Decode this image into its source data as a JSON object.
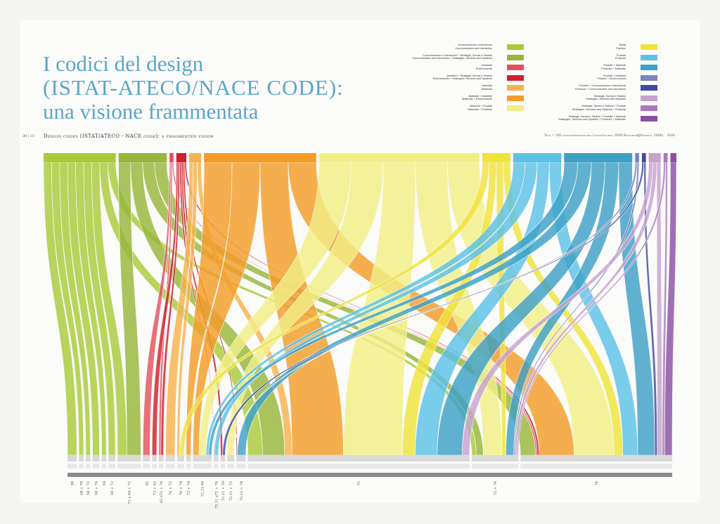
{
  "header": {
    "title_line1": "I codici del design",
    "title_line2": "(ISTAT-ATECO/NACE CODE):",
    "title_line3": "una visione frammentata",
    "subtitle": "Design codes (ISTAT/ATECO - NACE code): a fragmented vision",
    "page_numbers": "30 | 31",
    "source_note": "Dati = 392 ricerche/researches (fonte/source: DSN Research@Gnomon_2008)",
    "brand": "DSN"
  },
  "legend_left": [
    {
      "it": "Comunicazione e Interazione",
      "en": "Communication and Interaction",
      "color": "#a8cb3a"
    },
    {
      "it": "Comunicazione e Interazione + Strategie, Servizi e Sistemi",
      "en": "Communication and Interaction + Strategies, Services and Systems",
      "color": "#97b63b"
    },
    {
      "it": "Ambienti",
      "en": "Environments",
      "color": "#e4505c"
    },
    {
      "it": "Ambienti + Strategie, Servizi e Sistemi",
      "en": "Environments + Strategies, Services and Systems",
      "color": "#d11f2b"
    },
    {
      "it": "Materiali",
      "en": "Materials",
      "color": "#f6b24e"
    },
    {
      "it": "Materiali + Ambienti",
      "en": "Materials + Environments",
      "color": "#f39c28"
    },
    {
      "it": "Materiali + Prodotti",
      "en": "Materials + Products",
      "color": "#f1ee86"
    }
  ],
  "legend_right": [
    {
      "it": "Moda",
      "en": "Fashion",
      "color": "#efe33a"
    },
    {
      "it": "Prodotti",
      "en": "Products",
      "color": "#5bc1e7"
    },
    {
      "it": "Prodotti + Materiali",
      "en": "Products + Materials",
      "color": "#3da0c7"
    },
    {
      "it": "Prodotti + Ambienti",
      "en": "Product + Environments",
      "color": "#7a84c0"
    },
    {
      "it": "Prodotti + Comunicazione e Interazione",
      "en": "Products + Communication and Interaction",
      "color": "#3f4a9c"
    },
    {
      "it": "Strategie, Servizi e Sistemi",
      "en": "Strategies, Services and Systems",
      "color": "#c6a2cf"
    },
    {
      "it": "Strategie, Servizi e Sistemi + Prodotti",
      "en": "Strategies, Services and Systems + Products",
      "color": "#ab79bb"
    },
    {
      "it": "Strategie, Servizi e Sistemi + Prodotti + Materiali",
      "en": "Strategies, Services and Systems + Products + Materials",
      "color": "#8a4fa3"
    }
  ],
  "chart_data": {
    "type": "sankey",
    "total_researches": 392,
    "top_categories": [
      {
        "name": "Comunicazione e Interazione",
        "color": "#a8cb3a",
        "weight": 36
      },
      {
        "name": "Comunicazione e Interazione + Strategie, Servizi e Sistemi",
        "color": "#97b63b",
        "weight": 24
      },
      {
        "name": "Ambienti",
        "color": "#e4505c",
        "weight": 2
      },
      {
        "name": "Ambienti + Strategie, Servizi e Sistemi",
        "color": "#d11f2b",
        "weight": 5
      },
      {
        "name": "Materiali",
        "color": "#f6b24e",
        "weight": 6
      },
      {
        "name": "Materiali + Ambienti",
        "color": "#f39c28",
        "weight": 56
      },
      {
        "name": "Materiali + Prodotti",
        "color": "#f1ee86",
        "weight": 80
      },
      {
        "name": "Moda",
        "color": "#efe33a",
        "weight": 14
      },
      {
        "name": "Prodotti",
        "color": "#5bc1e7",
        "weight": 24
      },
      {
        "name": "Prodotti + Materiali",
        "color": "#3da0c7",
        "weight": 34
      },
      {
        "name": "Prodotti + Ambienti",
        "color": "#7a84c0",
        "weight": 2
      },
      {
        "name": "Prodotti + Comunicazione e Interazione",
        "color": "#3f4a9c",
        "weight": 2
      },
      {
        "name": "Strategie, Servizi e Sistemi",
        "color": "#c6a2cf",
        "weight": 6
      },
      {
        "name": "Strategie, Servizi e Sistemi + Prodotti",
        "color": "#ab79bb",
        "weight": 2
      },
      {
        "name": "Strategie, Servizi e Sistemi + Prodotti + Materiali",
        "color": "#8a4fa3",
        "weight": 3
      }
    ],
    "bottom_codes": [
      {
        "code": "58",
        "weight": 4
      },
      {
        "code": "58 + 70",
        "weight": 2
      },
      {
        "code": "58 + 72",
        "weight": 2
      },
      {
        "code": "58 + 74",
        "weight": 3
      },
      {
        "code": "59",
        "weight": 2
      },
      {
        "code": "59 + 72",
        "weight": 3
      },
      {
        "code": "72 e 64 + 72",
        "weight": 10
      },
      {
        "code": "62",
        "weight": 3
      },
      {
        "code": "72 + 62",
        "weight": 2
      },
      {
        "code": "62 e72 + 74",
        "weight": 2
      },
      {
        "code": "70 + 72",
        "weight": 4
      },
      {
        "code": "70 + 74",
        "weight": 3
      },
      {
        "code": "72 + 74",
        "weight": 2
      },
      {
        "code": "72.11.00",
        "weight": 8
      },
      {
        "code": "72.11 e72 + 74",
        "weight": 2
      },
      {
        "code": "72.11 + 70",
        "weight": 2
      },
      {
        "code": "72.11 + 72",
        "weight": 3
      },
      {
        "code": "72.11 + 74",
        "weight": 4
      },
      {
        "code": "72",
        "weight": 95
      },
      {
        "code": "72 + 74",
        "weight": 20
      },
      {
        "code": "74",
        "weight": 65
      }
    ],
    "legend_placement": "top-right"
  }
}
